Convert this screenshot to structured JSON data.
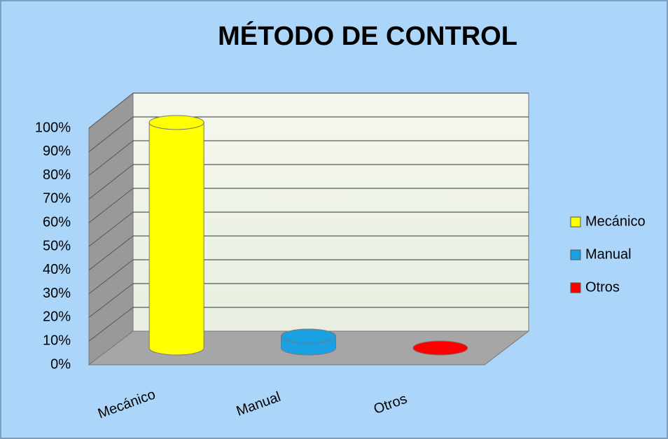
{
  "chart_data": {
    "type": "cylinder3d",
    "title": "MÉTODO DE CONTROL",
    "categories": [
      "Mecánico",
      "Manual",
      "Otros"
    ],
    "values": [
      95,
      5,
      0
    ],
    "colors": [
      "#ffff00",
      "#1ba1e2",
      "#ff0000"
    ],
    "ylim": [
      0,
      100
    ],
    "yticks": [
      {
        "value": 0,
        "label": "0%"
      },
      {
        "value": 10,
        "label": "10%"
      },
      {
        "value": 20,
        "label": "20%"
      },
      {
        "value": 30,
        "label": "30%"
      },
      {
        "value": 40,
        "label": "40%"
      },
      {
        "value": 50,
        "label": "50%"
      },
      {
        "value": 60,
        "label": "60%"
      },
      {
        "value": 70,
        "label": "70%"
      },
      {
        "value": 80,
        "label": "80%"
      },
      {
        "value": 90,
        "label": "90%"
      },
      {
        "value": 100,
        "label": "100%"
      }
    ],
    "grid": true,
    "legend": "right"
  }
}
